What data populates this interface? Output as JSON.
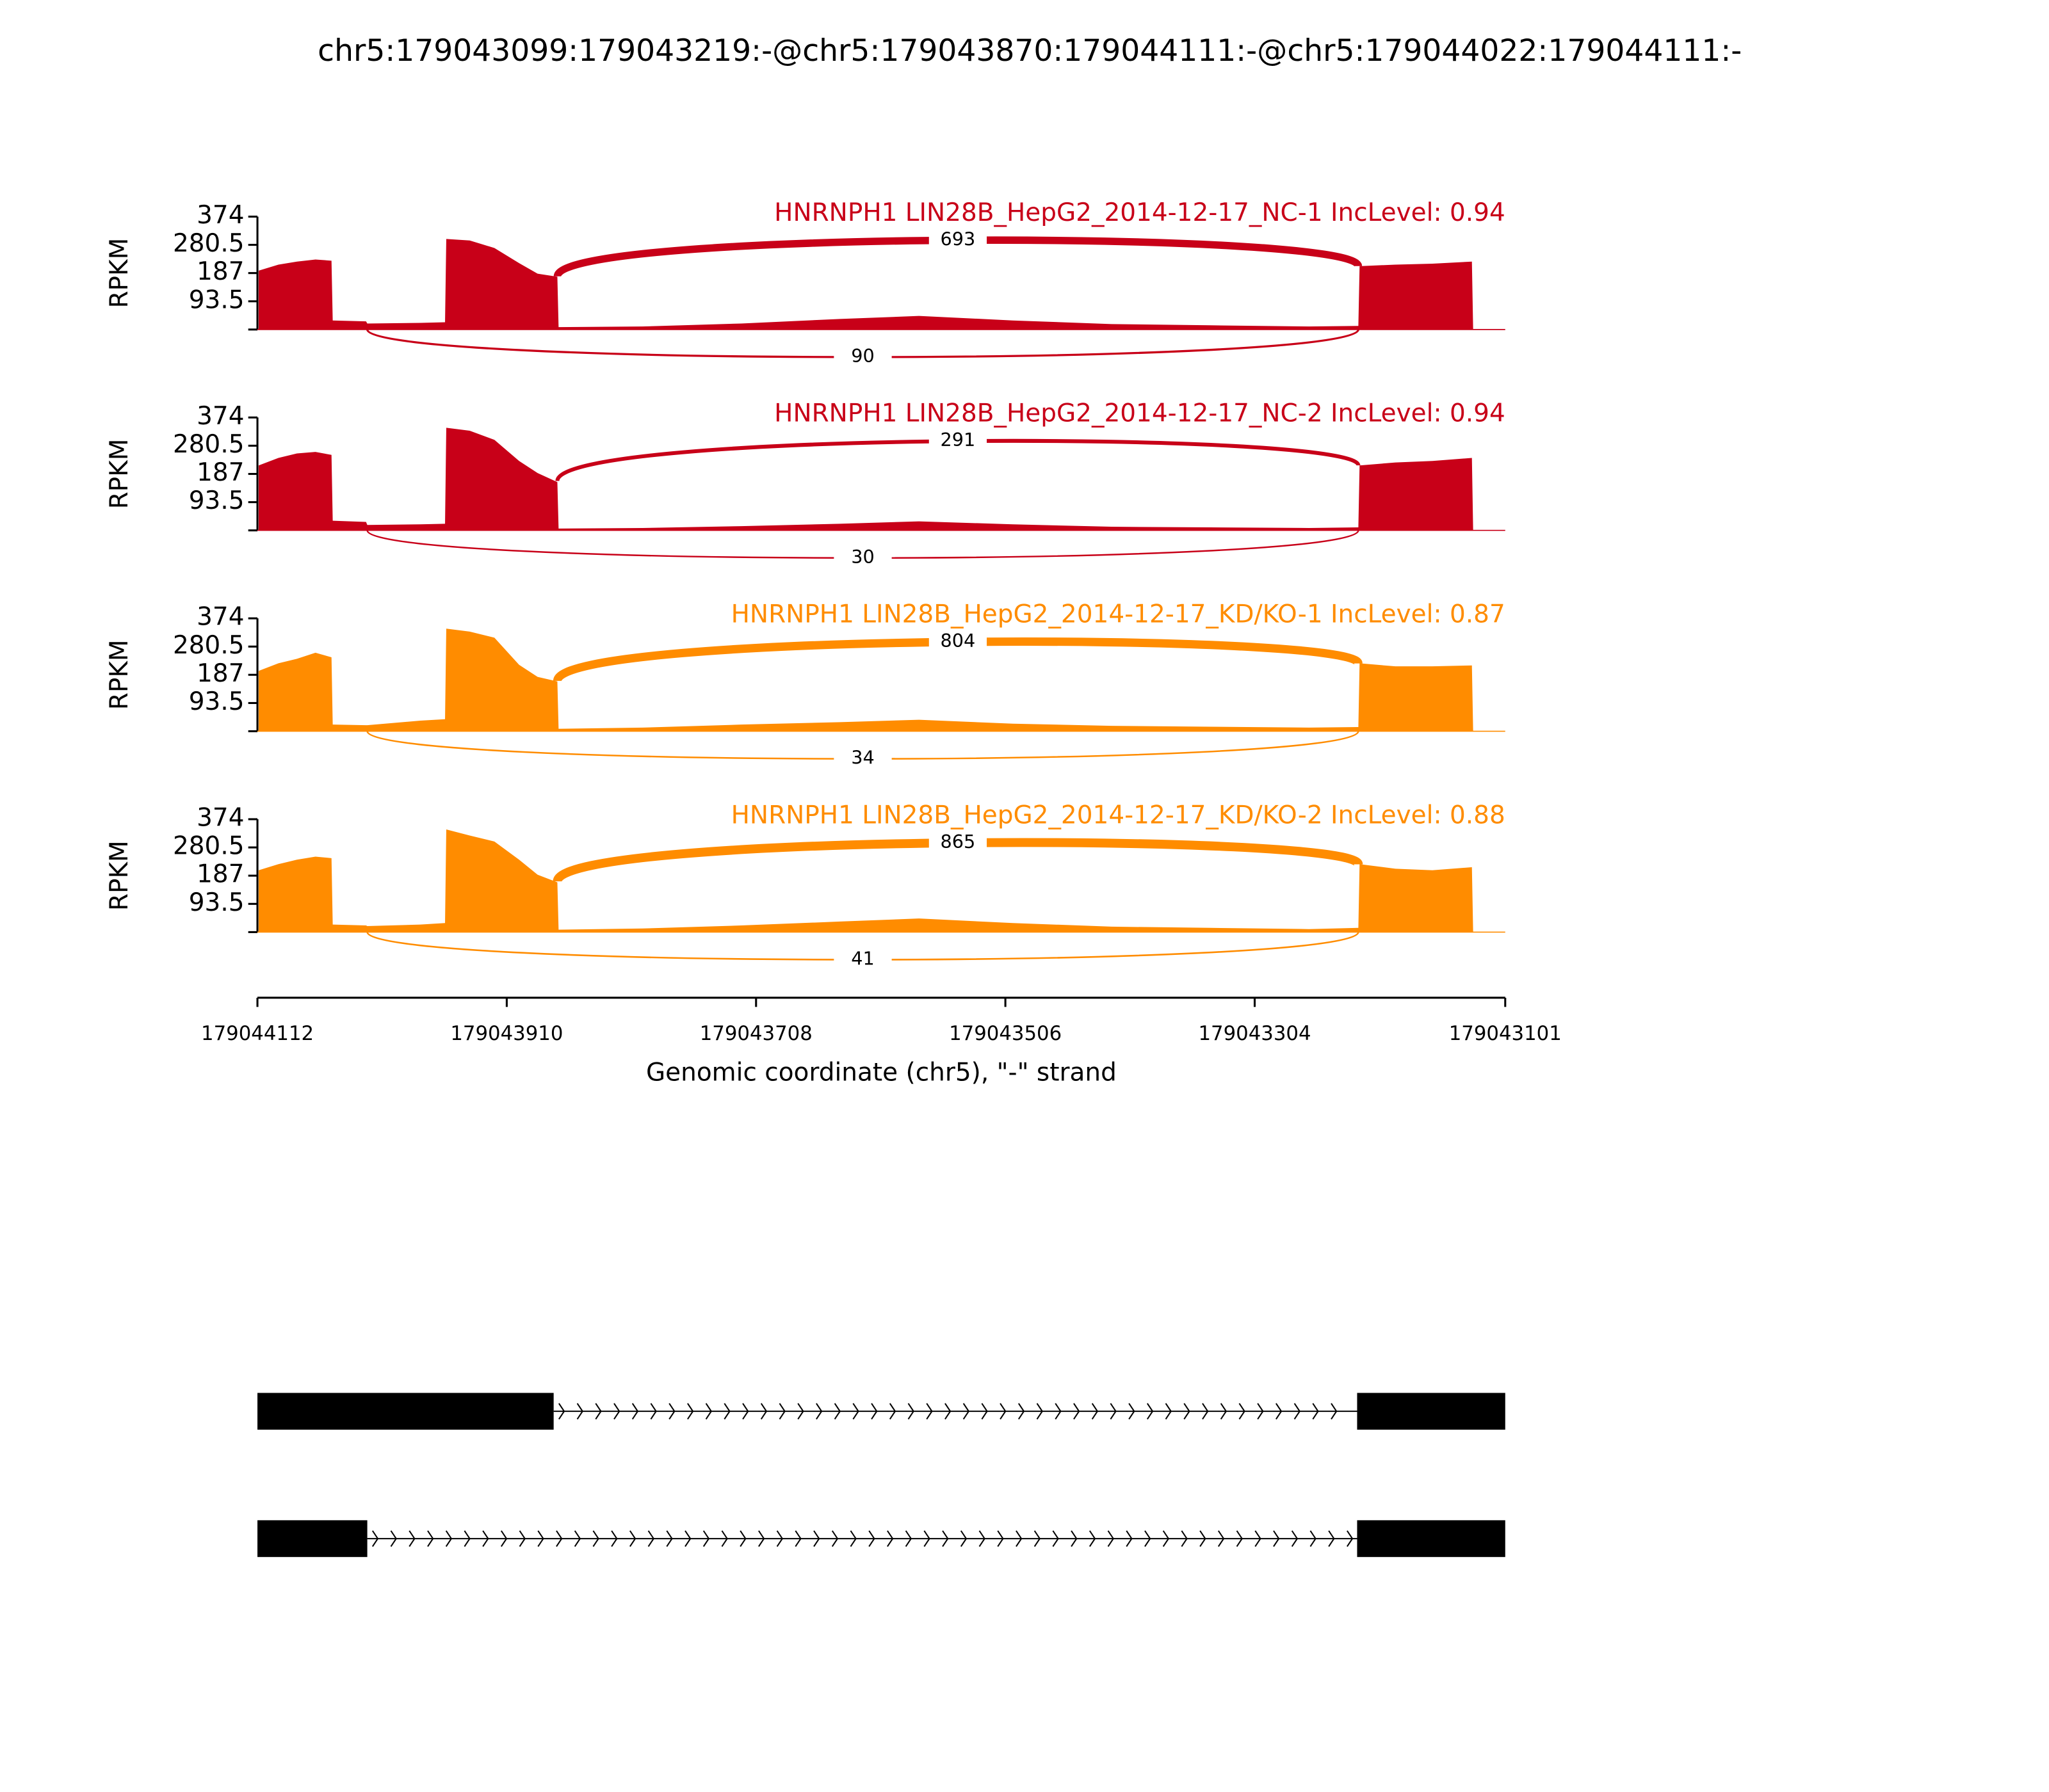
{
  "chart_data": {
    "type": "sashimi",
    "title": "chr5:179043099:179043219:-@chr5:179043870:179044111:-@chr5:179044022:179044111:-",
    "xlabel": "Genomic coordinate (chr5), \"-\" strand",
    "ylabel": "RPKM",
    "xlim": [
      179044112,
      179043101
    ],
    "xticks": [
      179044112,
      179043910,
      179043708,
      179043506,
      179043304,
      179043101
    ],
    "ylim": [
      0,
      374
    ],
    "yticks": [
      93.5,
      187,
      280.5,
      374
    ],
    "coverage_x": [
      179044111,
      179044095,
      179044080,
      179044065,
      179044052,
      179044051,
      179044024,
      179044023,
      179043980,
      179043960,
      179043959,
      179043940,
      179043920,
      179043900,
      179043885,
      179043869,
      179043868,
      179043800,
      179043720,
      179043640,
      179043576,
      179043500,
      179043420,
      179043340,
      179043260,
      179043220,
      179043219,
      179043190,
      179043160,
      179043128,
      179043127
    ],
    "junctions": [
      [
        179043869,
        179043220
      ],
      [
        179044023,
        179043220
      ]
    ],
    "series": [
      {
        "name": "HNRNPH1 LIN28B_HepG2_2014-12-17_NC-1 IncLevel: 0.94",
        "color": "#c80018",
        "values": [
          195,
          215,
          225,
          232,
          228,
          30,
          27,
          20,
          22,
          24,
          300,
          295,
          270,
          220,
          185,
          175,
          8,
          10,
          20,
          35,
          45,
          30,
          18,
          14,
          10,
          12,
          210,
          215,
          218,
          225,
          0
        ],
        "junction_counts": [
          693,
          90
        ]
      },
      {
        "name": "HNRNPH1 LIN28B_HepG2_2014-12-17_NC-2 IncLevel: 0.94",
        "color": "#c80018",
        "values": [
          215,
          240,
          255,
          260,
          250,
          32,
          28,
          18,
          20,
          22,
          340,
          330,
          300,
          230,
          190,
          160,
          6,
          8,
          14,
          22,
          30,
          20,
          12,
          10,
          8,
          10,
          215,
          225,
          230,
          240,
          0
        ],
        "junction_counts": [
          291,
          30
        ]
      },
      {
        "name": "HNRNPH1 LIN28B_HepG2_2014-12-17_KD/KO-1 IncLevel: 0.87",
        "color": "#ff8c00",
        "values": [
          200,
          225,
          240,
          260,
          245,
          22,
          20,
          20,
          35,
          40,
          340,
          330,
          310,
          220,
          180,
          165,
          8,
          12,
          22,
          30,
          38,
          25,
          18,
          15,
          12,
          14,
          225,
          215,
          215,
          218,
          0
        ],
        "junction_counts": [
          804,
          34
        ]
      },
      {
        "name": "HNRNPH1 LIN28B_HepG2_2014-12-17_KD/KO-2 IncLevel: 0.88",
        "color": "#ff8c00",
        "values": [
          205,
          225,
          240,
          250,
          245,
          25,
          22,
          20,
          25,
          30,
          340,
          320,
          300,
          240,
          190,
          165,
          8,
          12,
          22,
          35,
          45,
          30,
          18,
          14,
          10,
          14,
          225,
          210,
          205,
          215,
          0
        ],
        "junction_counts": [
          865,
          41
        ]
      }
    ],
    "transcripts": [
      {
        "exons": [
          [
            179044112,
            179043872
          ],
          [
            179043221,
            179043101
          ]
        ]
      },
      {
        "exons": [
          [
            179044112,
            179044023
          ],
          [
            179043221,
            179043101
          ]
        ]
      }
    ]
  }
}
